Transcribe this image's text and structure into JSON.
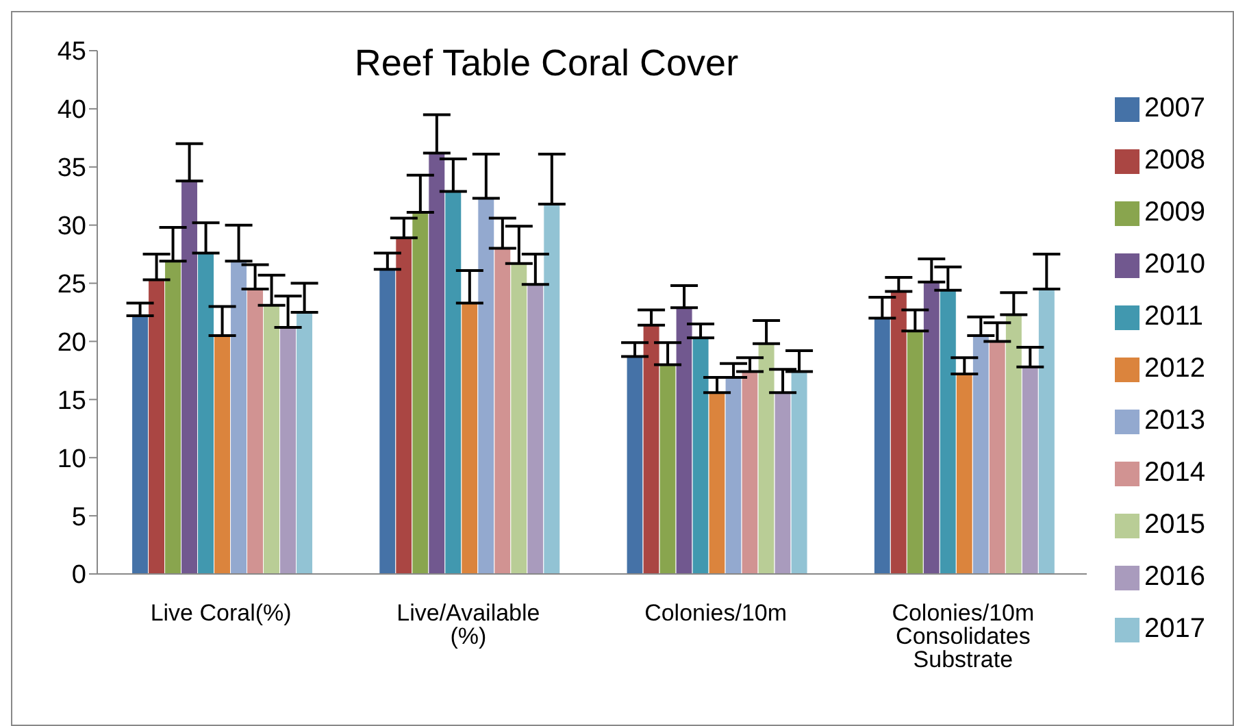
{
  "chart_data": {
    "type": "bar",
    "title": "Reef Table Coral Cover",
    "categories": [
      "Live Coral(%)",
      "Live/Available (%)",
      "Colonies/10m",
      "Colonies/10m Consolidates Substrate"
    ],
    "series": [
      {
        "name": "2007",
        "color": "#4572a7",
        "values": [
          22.2,
          26.2,
          18.7,
          22.0
        ],
        "errors": [
          [
            22.2,
            23.3
          ],
          [
            26.2,
            27.6
          ],
          [
            18.7,
            19.9
          ],
          [
            22.0,
            23.8
          ]
        ]
      },
      {
        "name": "2008",
        "color": "#aa4643",
        "values": [
          25.3,
          28.9,
          21.4,
          24.3
        ],
        "errors": [
          [
            25.3,
            27.5
          ],
          [
            28.9,
            30.6
          ],
          [
            21.4,
            22.7
          ],
          [
            24.3,
            25.5
          ]
        ]
      },
      {
        "name": "2009",
        "color": "#89a54e",
        "values": [
          26.9,
          31.1,
          18.0,
          20.9
        ],
        "errors": [
          [
            26.9,
            29.8
          ],
          [
            31.1,
            34.3
          ],
          [
            18.0,
            19.9
          ],
          [
            20.9,
            22.7
          ]
        ]
      },
      {
        "name": "2010",
        "color": "#71588f",
        "values": [
          33.8,
          36.2,
          22.9,
          25.1
        ],
        "errors": [
          [
            33.8,
            37.0
          ],
          [
            36.2,
            39.5
          ],
          [
            22.9,
            24.8
          ],
          [
            25.1,
            27.1
          ]
        ]
      },
      {
        "name": "2011",
        "color": "#4198af",
        "values": [
          27.6,
          32.9,
          20.3,
          24.4
        ],
        "errors": [
          [
            27.6,
            30.2
          ],
          [
            32.9,
            35.7
          ],
          [
            20.3,
            21.5
          ],
          [
            24.4,
            26.4
          ]
        ]
      },
      {
        "name": "2012",
        "color": "#db843d",
        "values": [
          20.5,
          23.3,
          15.6,
          17.2
        ],
        "errors": [
          [
            20.5,
            23.0
          ],
          [
            23.3,
            26.1
          ],
          [
            15.6,
            16.9
          ],
          [
            17.2,
            18.6
          ]
        ]
      },
      {
        "name": "2013",
        "color": "#93a9cf",
        "values": [
          26.9,
          32.3,
          16.9,
          20.5
        ],
        "errors": [
          [
            26.9,
            30.0
          ],
          [
            32.3,
            36.1
          ],
          [
            16.9,
            18.1
          ],
          [
            20.5,
            22.1
          ]
        ]
      },
      {
        "name": "2014",
        "color": "#d19392",
        "values": [
          24.5,
          28.0,
          17.4,
          20.0
        ],
        "errors": [
          [
            24.5,
            26.6
          ],
          [
            28.0,
            30.6
          ],
          [
            17.4,
            18.6
          ],
          [
            20.0,
            21.6
          ]
        ]
      },
      {
        "name": "2015",
        "color": "#b9cd96",
        "values": [
          23.1,
          26.7,
          19.8,
          22.3
        ],
        "errors": [
          [
            23.1,
            25.7
          ],
          [
            26.7,
            29.9
          ],
          [
            19.8,
            21.8
          ],
          [
            22.3,
            24.2
          ]
        ]
      },
      {
        "name": "2016",
        "color": "#a99bbd",
        "values": [
          21.2,
          24.9,
          15.6,
          17.8
        ],
        "errors": [
          [
            21.2,
            23.9
          ],
          [
            24.9,
            27.5
          ],
          [
            15.6,
            17.6
          ],
          [
            17.8,
            19.5
          ]
        ]
      },
      {
        "name": "2017",
        "color": "#92c3d4",
        "values": [
          22.5,
          31.8,
          17.4,
          24.5
        ],
        "errors": [
          [
            22.5,
            25.0
          ],
          [
            31.8,
            36.1
          ],
          [
            17.4,
            19.2
          ],
          [
            24.5,
            27.5
          ]
        ]
      }
    ],
    "ylim": [
      0,
      45
    ],
    "yticks": [
      0,
      5,
      10,
      15,
      20,
      25,
      30,
      35,
      40,
      45
    ],
    "grid": false,
    "legend": "right"
  }
}
